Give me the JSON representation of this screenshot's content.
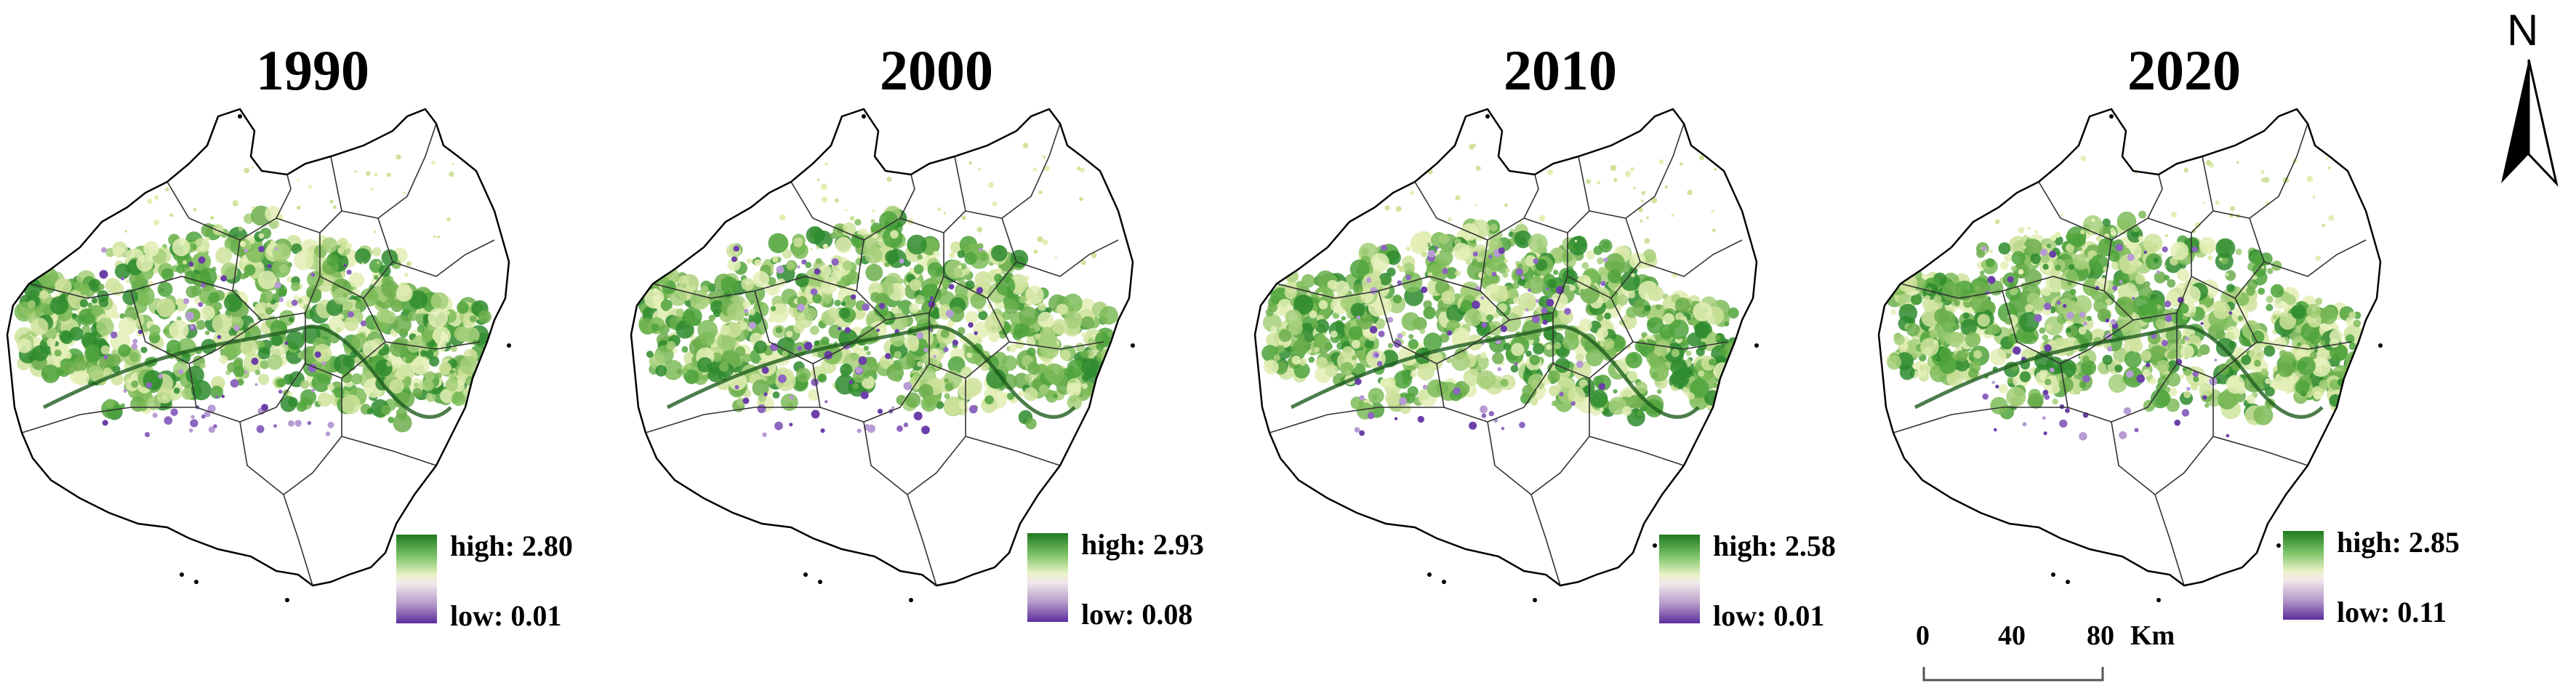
{
  "panels": [
    {
      "year": "1990",
      "high_label": "high: 2.80",
      "low_label": "low: 0.01"
    },
    {
      "year": "2000",
      "high_label": "high: 2.93",
      "low_label": "low: 0.08"
    },
    {
      "year": "2010",
      "high_label": "high: 2.58",
      "low_label": "low: 0.01"
    },
    {
      "year": "2020",
      "high_label": "high: 2.85",
      "low_label": "low: 0.11"
    }
  ],
  "north_arrow": {
    "letter": "N"
  },
  "scale_bar": {
    "ticks": [
      "0",
      "40",
      "80"
    ],
    "unit": "Km"
  },
  "colors": {
    "high": "#1f7a1f",
    "mid": "#f2eee6",
    "low": "#5b2d9c",
    "boundary": "#000000"
  }
}
